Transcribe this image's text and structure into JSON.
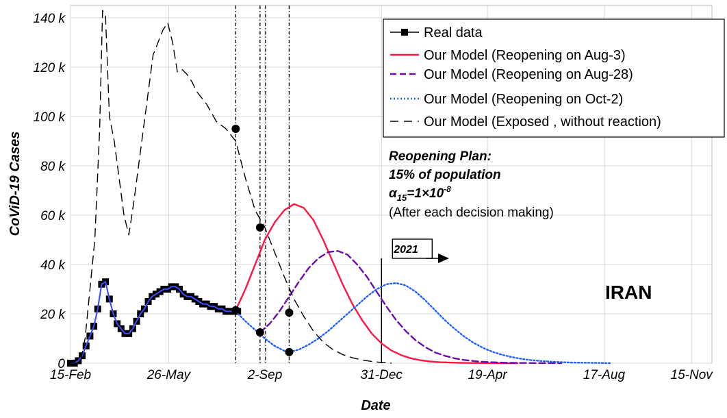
{
  "chart_data": {
    "type": "line",
    "title": "",
    "xlabel": "Date",
    "ylabel": "CoViD-19 Cases",
    "x_unit": "days since 15-Feb (2020)",
    "xlim": [
      0,
      660
    ],
    "ylim": [
      0,
      145000
    ],
    "grid": true,
    "legend_position": "top-right",
    "x_ticks": [
      {
        "value": 0,
        "label": "15-Feb"
      },
      {
        "value": 101,
        "label": "26-May"
      },
      {
        "value": 200,
        "label": "2-Sep"
      },
      {
        "value": 320,
        "label": "31-Dec"
      },
      {
        "value": 429,
        "label": "19-Apr"
      },
      {
        "value": 549,
        "label": "17-Aug"
      },
      {
        "value": 639,
        "label": "15-Nov"
      }
    ],
    "y_ticks": [
      {
        "value": 0,
        "label": "0"
      },
      {
        "value": 20000,
        "label": "20 k"
      },
      {
        "value": 40000,
        "label": "40 k"
      },
      {
        "value": 60000,
        "label": "60 k"
      },
      {
        "value": 80000,
        "label": "80 k"
      },
      {
        "value": 100000,
        "label": "100 k"
      },
      {
        "value": 120000,
        "label": "120 k"
      },
      {
        "value": 140000,
        "label": "140 k"
      }
    ],
    "series": [
      {
        "name": "Real data",
        "style": "solid-square-markers",
        "color": "#000000",
        "x": [
          0,
          4,
          8,
          12,
          16,
          20,
          24,
          28,
          32,
          36,
          40,
          44,
          48,
          52,
          56,
          60,
          64,
          68,
          72,
          76,
          80,
          84,
          88,
          92,
          96,
          100,
          104,
          108,
          112,
          116,
          120,
          124,
          128,
          132,
          136,
          140,
          144,
          148,
          152,
          156,
          160,
          164,
          168,
          172
        ],
        "y": [
          0,
          0,
          1000,
          3000,
          7000,
          11000,
          15000,
          22000,
          32000,
          33000,
          26000,
          20000,
          16000,
          14000,
          12000,
          12000,
          14000,
          17000,
          20000,
          22000,
          25000,
          27000,
          28000,
          29000,
          30000,
          30000,
          31000,
          31000,
          30000,
          28000,
          27000,
          27000,
          26000,
          25000,
          24000,
          24000,
          23000,
          23000,
          22000,
          22000,
          21000,
          21000,
          21000,
          21000
        ]
      },
      {
        "name": "Our Model (Reopening on Aug-3)",
        "style": "solid",
        "color": "#ff1744",
        "x": [
          170,
          180,
          190,
          200,
          210,
          220,
          230,
          240,
          250,
          260,
          270,
          280,
          290,
          300,
          310,
          320,
          330,
          340,
          350,
          360,
          370,
          380,
          390,
          400,
          410,
          420,
          430,
          440,
          450,
          460
        ],
        "y": [
          21500,
          30000,
          40000,
          50000,
          57000,
          62000,
          64500,
          63000,
          58000,
          50000,
          41000,
          32000,
          24000,
          17500,
          12000,
          8000,
          5200,
          3300,
          2000,
          1200,
          700,
          400,
          250,
          150,
          80,
          50,
          30,
          15,
          10,
          0
        ]
      },
      {
        "name": "Our Model (Reopening on Aug-28)",
        "style": "dashed",
        "color": "#6a0dad",
        "x": [
          195,
          205,
          215,
          225,
          235,
          245,
          255,
          265,
          275,
          285,
          295,
          305,
          315,
          325,
          335,
          345,
          355,
          365,
          375,
          385,
          395,
          405,
          415,
          425,
          435,
          445,
          455,
          465,
          475,
          485,
          495,
          505
        ],
        "y": [
          12500,
          16000,
          21000,
          27000,
          33000,
          38500,
          42500,
          45000,
          45500,
          44000,
          40000,
          35000,
          29000,
          23000,
          17500,
          13000,
          9300,
          6500,
          4400,
          3000,
          2000,
          1300,
          850,
          550,
          350,
          220,
          140,
          90,
          50,
          30,
          15,
          0
        ]
      },
      {
        "name": "Our Model (Reopening on Oct-2)",
        "style": "dotted",
        "color": "#1f5fff",
        "x": [
          170,
          180,
          190,
          200,
          210,
          220,
          225,
          235,
          245,
          255,
          265,
          275,
          285,
          295,
          305,
          315,
          325,
          335,
          345,
          355,
          365,
          375,
          385,
          395,
          405,
          415,
          425,
          435,
          445,
          455,
          465,
          475,
          485,
          495,
          505,
          515,
          525,
          535,
          545,
          555
        ],
        "y": [
          21000,
          17000,
          13500,
          10000,
          7000,
          5000,
          4500,
          5500,
          7500,
          10000,
          13000,
          16500,
          20000,
          23500,
          27000,
          30000,
          32000,
          32500,
          31500,
          29000,
          25500,
          21500,
          17500,
          14000,
          10800,
          8200,
          6100,
          4500,
          3300,
          2400,
          1700,
          1200,
          850,
          600,
          420,
          290,
          200,
          130,
          80,
          0
        ]
      },
      {
        "name": "Our Model (Exposed , without reaction)",
        "style": "long-dashed",
        "color": "#000000",
        "x": [
          0,
          10,
          15,
          20,
          25,
          30,
          33,
          36,
          40,
          45,
          50,
          55,
          60,
          62,
          65,
          70,
          75,
          80,
          85,
          90,
          95,
          100,
          105,
          110,
          115,
          120,
          125,
          130,
          140,
          150,
          160,
          170,
          180,
          190,
          200,
          210,
          220,
          230,
          240,
          250,
          260,
          270,
          280,
          290,
          300,
          310,
          320,
          330
        ],
        "y": [
          0,
          0,
          10000,
          30000,
          50000,
          95000,
          143000,
          141000,
          100000,
          90000,
          75000,
          60000,
          52000,
          57000,
          65000,
          80000,
          95000,
          110000,
          125000,
          130000,
          135000,
          138000,
          130000,
          118000,
          119000,
          117000,
          114000,
          110000,
          105000,
          98000,
          95000,
          90000,
          75000,
          62000,
          55000,
          45000,
          35000,
          26000,
          19000,
          13000,
          8500,
          5500,
          3500,
          2200,
          1300,
          700,
          300,
          0
        ]
      }
    ],
    "decision_lines": [
      {
        "x": 170
      },
      {
        "x": 195
      },
      {
        "x": 225
      }
    ],
    "decision_markers": [
      {
        "x": 170,
        "y": 95000
      },
      {
        "x": 170,
        "y": 21500
      },
      {
        "x": 195,
        "y": 55000
      },
      {
        "x": 195,
        "y": 12500
      },
      {
        "x": 225,
        "y": 20500
      },
      {
        "x": 225,
        "y": 4500
      }
    ],
    "year_line_x": 320
  },
  "annotations": {
    "plan_title": "Reopening Plan:",
    "plan_population": "15% of population",
    "plan_alpha_symbol": "α",
    "plan_alpha_sub": "15",
    "plan_alpha_eq": "=1×10",
    "plan_alpha_exp": "-8",
    "plan_note": "(After each decision making)",
    "region_label": "IRAN",
    "year_label": "2021"
  }
}
